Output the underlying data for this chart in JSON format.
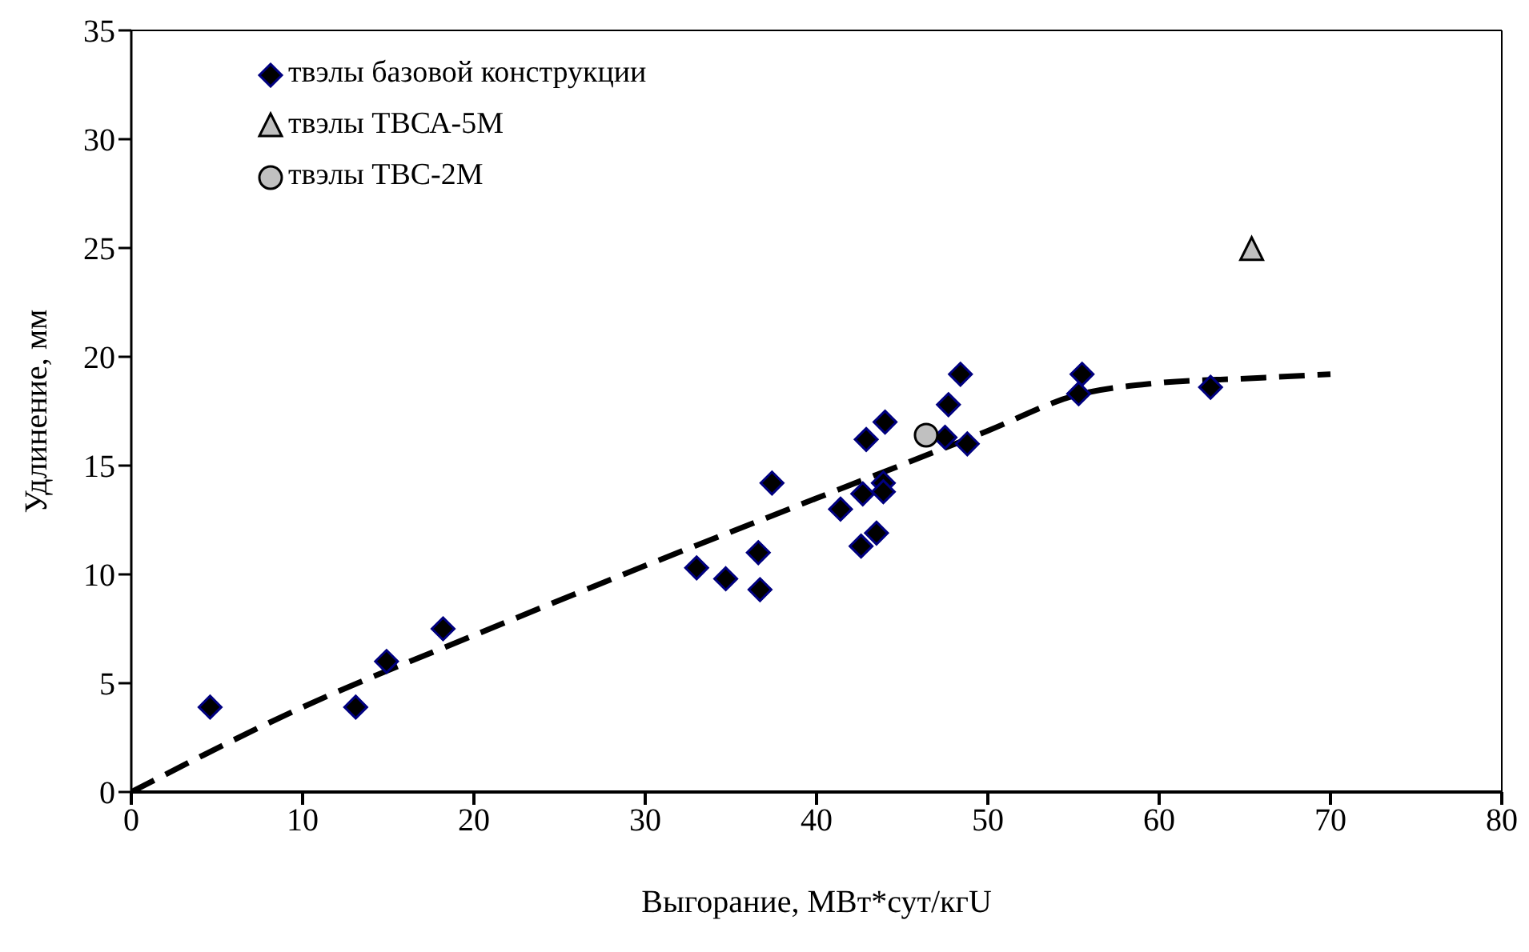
{
  "chart_data": {
    "type": "scatter",
    "xlabel": "Выгорание, МВт*сут/кгU",
    "ylabel": "Удлинение, мм",
    "xlim": [
      0,
      80
    ],
    "xticks": [
      0,
      10,
      20,
      30,
      40,
      50,
      60,
      70,
      80
    ],
    "ylim": [
      0,
      35
    ],
    "yticks": [
      0,
      5,
      10,
      15,
      20,
      25,
      30,
      35
    ],
    "legend": "top left",
    "series": [
      {
        "name": "твэлы базовой конструкции",
        "marker": "diamond",
        "color": "#000000",
        "x": [
          4.6,
          13.1,
          14.9,
          18.2,
          33,
          34.7,
          36.6,
          36.7,
          37.4,
          41.4,
          42.6,
          42.7,
          42.9,
          43.5,
          43.9,
          43.9,
          44.0,
          47.5,
          47.7,
          48.4,
          48.8,
          55.3,
          55.5,
          63
        ],
        "values": [
          3.9,
          3.9,
          6.0,
          7.5,
          10.3,
          9.8,
          11.0,
          9.3,
          14.2,
          13.0,
          11.3,
          13.7,
          16.2,
          11.9,
          14.2,
          13.8,
          17.0,
          16.3,
          17.8,
          19.2,
          16.0,
          18.3,
          19.2,
          18.6
        ]
      },
      {
        "name": "твэлы ТВСА-5М",
        "marker": "triangle",
        "color": "#c0c0c0",
        "x": [
          65.4
        ],
        "values": [
          24.9
        ]
      },
      {
        "name": "твэлы ТВС-2М",
        "marker": "circle",
        "color": "#c0c0c0",
        "x": [
          46.4
        ],
        "values": [
          16.4
        ]
      },
      {
        "type": "line",
        "line_style": "dashed",
        "marker": "none",
        "color": "#000000",
        "x": [
          0,
          10,
          20,
          30,
          40,
          50,
          55,
          60,
          65,
          70
        ],
        "values": [
          0,
          3.9,
          7.2,
          10.4,
          13.5,
          16.6,
          18.2,
          18.8,
          19.0,
          19.2
        ]
      }
    ]
  }
}
